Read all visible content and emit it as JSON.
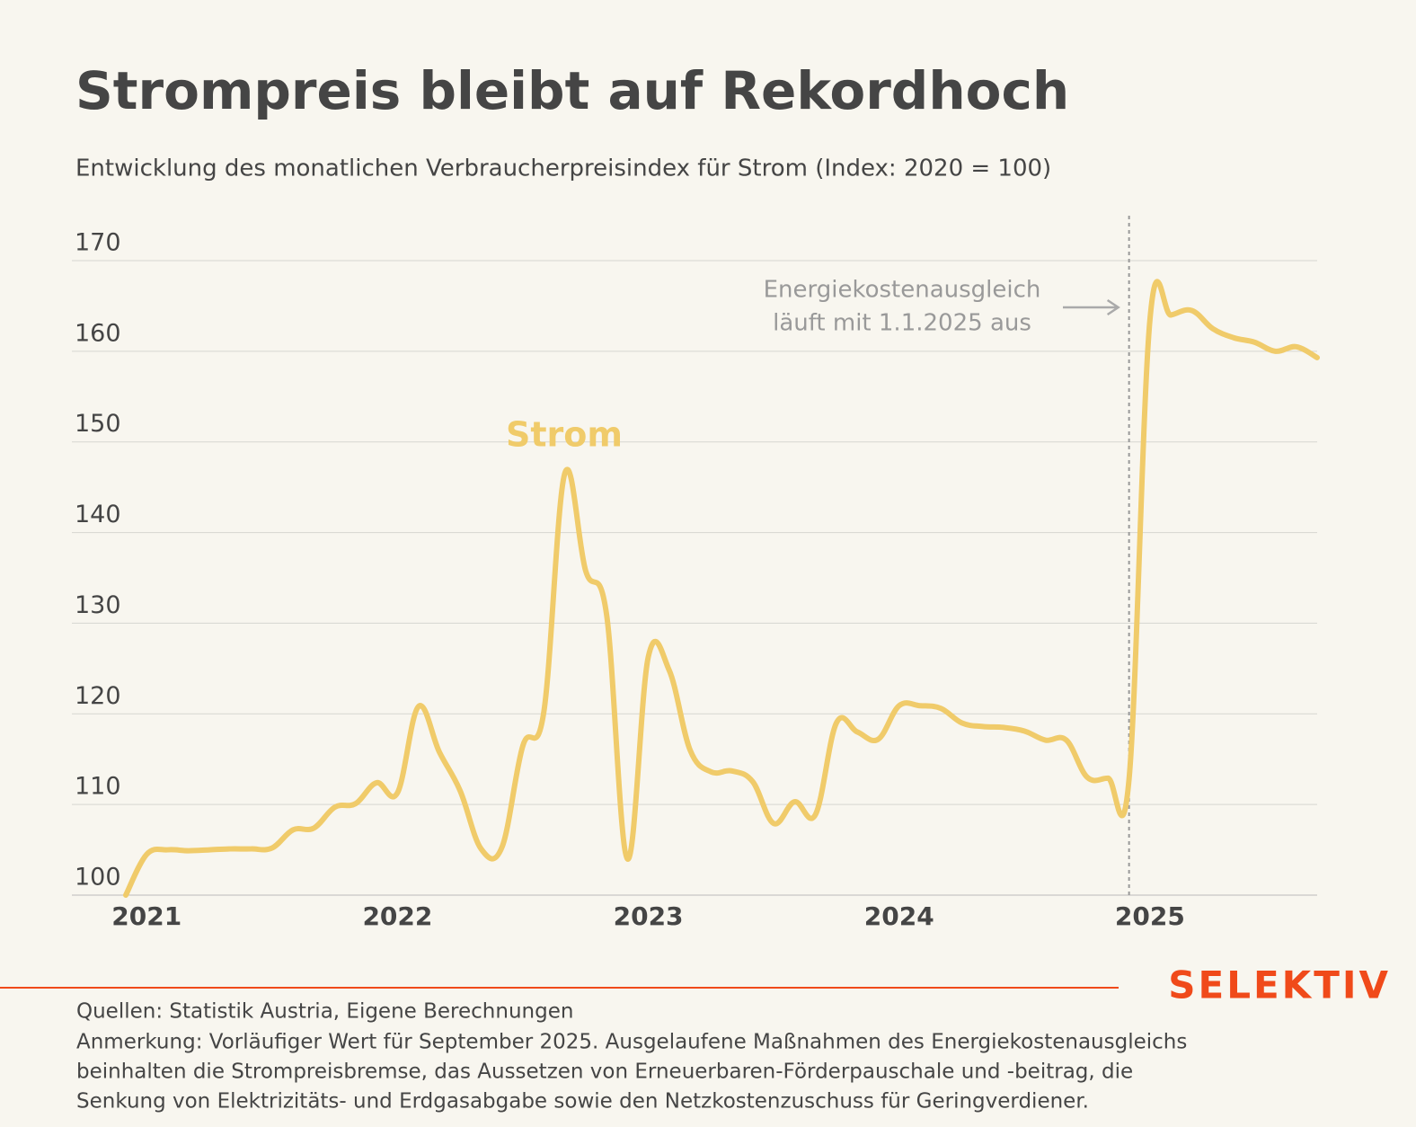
{
  "chart_data": {
    "type": "line",
    "title": "Strompreis bleibt auf Rekordhoch",
    "subtitle": "Entwicklung des monatlichen Verbraucherpreisindex für Strom (Index: 2020 = 100)",
    "categories": [
      null,
      "2021",
      null,
      null,
      null,
      null,
      null,
      null,
      null,
      null,
      null,
      null,
      null,
      "2022",
      null,
      null,
      null,
      null,
      null,
      null,
      null,
      null,
      null,
      null,
      null,
      "2023",
      null,
      null,
      null,
      null,
      null,
      null,
      null,
      null,
      null,
      null,
      null,
      "2024",
      null,
      null,
      null,
      null,
      null,
      null,
      null,
      null,
      null,
      null,
      null,
      "2025",
      null,
      null,
      null,
      null,
      null,
      null,
      null,
      null
    ],
    "series": [
      {
        "name": "Strom",
        "color": "#f0cb6a",
        "values": [
          100,
          104.5,
          105,
          104.9,
          105,
          105.1,
          105.1,
          105.2,
          107.2,
          107.4,
          109.7,
          110.1,
          112.4,
          111.3,
          120.8,
          115.8,
          111.5,
          105.1,
          105.3,
          116.5,
          120.2,
          146.5,
          135.8,
          131,
          104,
          126.3,
          124.8,
          116,
          113.6,
          113.7,
          112.5,
          107.9,
          110.3,
          108.9,
          119,
          118,
          117.2,
          120.9,
          120.9,
          120.6,
          119,
          118.6,
          118.5,
          118.1,
          117.1,
          117.1,
          113,
          112.9,
          112.8,
          163.5,
          164,
          164.5,
          162.5,
          161.5,
          161,
          160,
          160.5,
          159.3
        ]
      }
    ],
    "ylim": [
      100,
      170
    ],
    "yticks": [
      100,
      110,
      120,
      130,
      140,
      150,
      160,
      170
    ],
    "grid": true,
    "annotation": [
      "Energiekostenausgleich",
      "läuft mit 1.1.2025 aus"
    ],
    "brand": "SELEKTIV",
    "sources": "Quellen: Statistik Austria, Eigene Berechnungen",
    "note": [
      "Anmerkung: Vorläufiger Wert für September 2025. Ausgelaufene Maßnahmen des Energiekostenausgleichs",
      "beinhalten die Strompreisbremse, das Aussetzen von Erneuerbaren-Förderpauschale und -beitrag, die",
      "Senkung von Elektrizitäts- und Erdgasabgabe sowie den Netzkostenzuschuss für Geringverdiener."
    ]
  }
}
